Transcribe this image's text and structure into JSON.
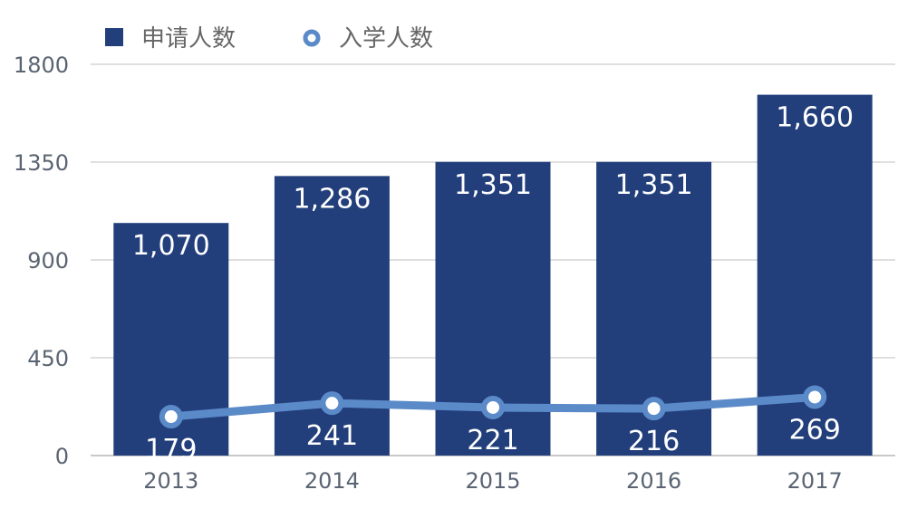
{
  "chart_data": {
    "type": "bar",
    "categories": [
      "2013",
      "2014",
      "2015",
      "2016",
      "2017"
    ],
    "series": [
      {
        "name": "申请人数",
        "type": "bar",
        "values": [
          1070,
          1286,
          1351,
          1351,
          1660
        ],
        "labels": [
          "1,070",
          "1,286",
          "1,351",
          "1,351",
          "1,660"
        ]
      },
      {
        "name": "入学人数",
        "type": "line",
        "values": [
          179,
          241,
          221,
          216,
          269
        ],
        "labels": [
          "179",
          "241",
          "221",
          "216",
          "269"
        ]
      }
    ],
    "y_ticks": [
      "0",
      "450",
      "900",
      "1350",
      "1800"
    ],
    "ylim": [
      0,
      1800
    ],
    "grid": true,
    "legend_position": "top-left",
    "colors": {
      "bar": "#223f7c",
      "line": "#5b8ac8",
      "grid": "#cccccc"
    }
  }
}
